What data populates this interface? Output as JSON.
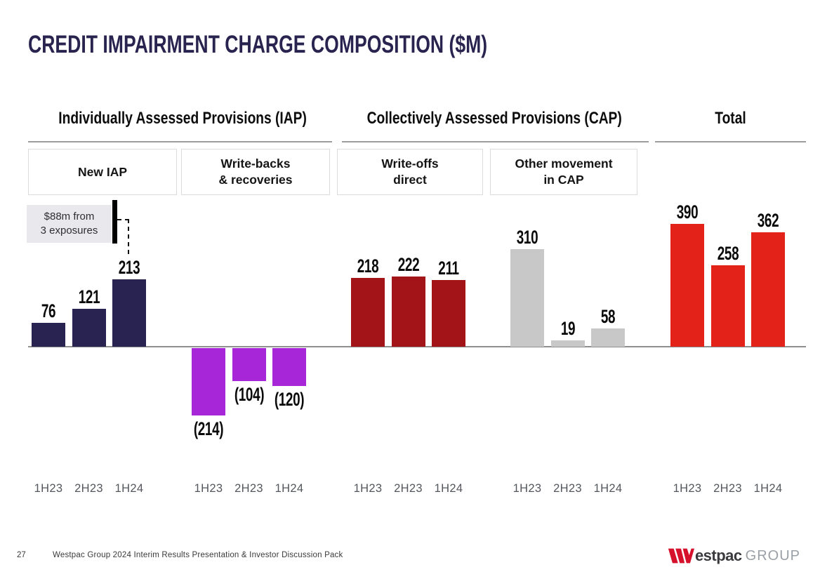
{
  "slide": {
    "title": "CREDIT IMPAIRMENT CHARGE COMPOSITION ($M)"
  },
  "sections": [
    {
      "label": "Individually Assessed Provisions (IAP)"
    },
    {
      "label": "Collectively Assessed Provisions (CAP)"
    },
    {
      "label": "Total"
    }
  ],
  "column_headers": [
    "New IAP",
    "Write-backs\n& recoveries",
    "Write-offs\ndirect",
    "Other movement\nin CAP"
  ],
  "annotation": {
    "text": "$88m from\n3 exposures",
    "points_to": "New IAP 1H24 bar (213)"
  },
  "chart_data": {
    "type": "bar",
    "unit": "$M",
    "categories": [
      "1H23",
      "2H23",
      "1H24"
    ],
    "ylim": [
      -250,
      400
    ],
    "grid": false,
    "legend": false,
    "groups": [
      {
        "section": "Individually Assessed Provisions (IAP)",
        "name": "New IAP",
        "values": [
          76,
          121,
          213
        ],
        "labels": [
          "76",
          "121",
          "213"
        ],
        "color": "#282350"
      },
      {
        "section": "Individually Assessed Provisions (IAP)",
        "name": "Write-backs & recoveries",
        "values": [
          -214,
          -104,
          -120
        ],
        "labels": [
          "(214)",
          "(104)",
          "(120)"
        ],
        "color": "#a626d8"
      },
      {
        "section": "Collectively Assessed Provisions (CAP)",
        "name": "Write-offs direct",
        "values": [
          218,
          222,
          211
        ],
        "labels": [
          "218",
          "222",
          "211"
        ],
        "color": "#a21418"
      },
      {
        "section": "Collectively Assessed Provisions (CAP)",
        "name": "Other movement in CAP",
        "values": [
          310,
          19,
          58
        ],
        "labels": [
          "310",
          "19",
          "58"
        ],
        "color": "#c8c8c8"
      },
      {
        "section": "Total",
        "name": "Total",
        "values": [
          390,
          258,
          362
        ],
        "labels": [
          "390",
          "258",
          "362"
        ],
        "color": "#e32219"
      }
    ]
  },
  "footer": {
    "page_number": "27",
    "text": "Westpac Group 2024 Interim Results Presentation & Investor Discussion Pack",
    "logo": {
      "wordmark": "estpac",
      "suffix": "GROUP",
      "brand_color": "#d5112b"
    }
  }
}
